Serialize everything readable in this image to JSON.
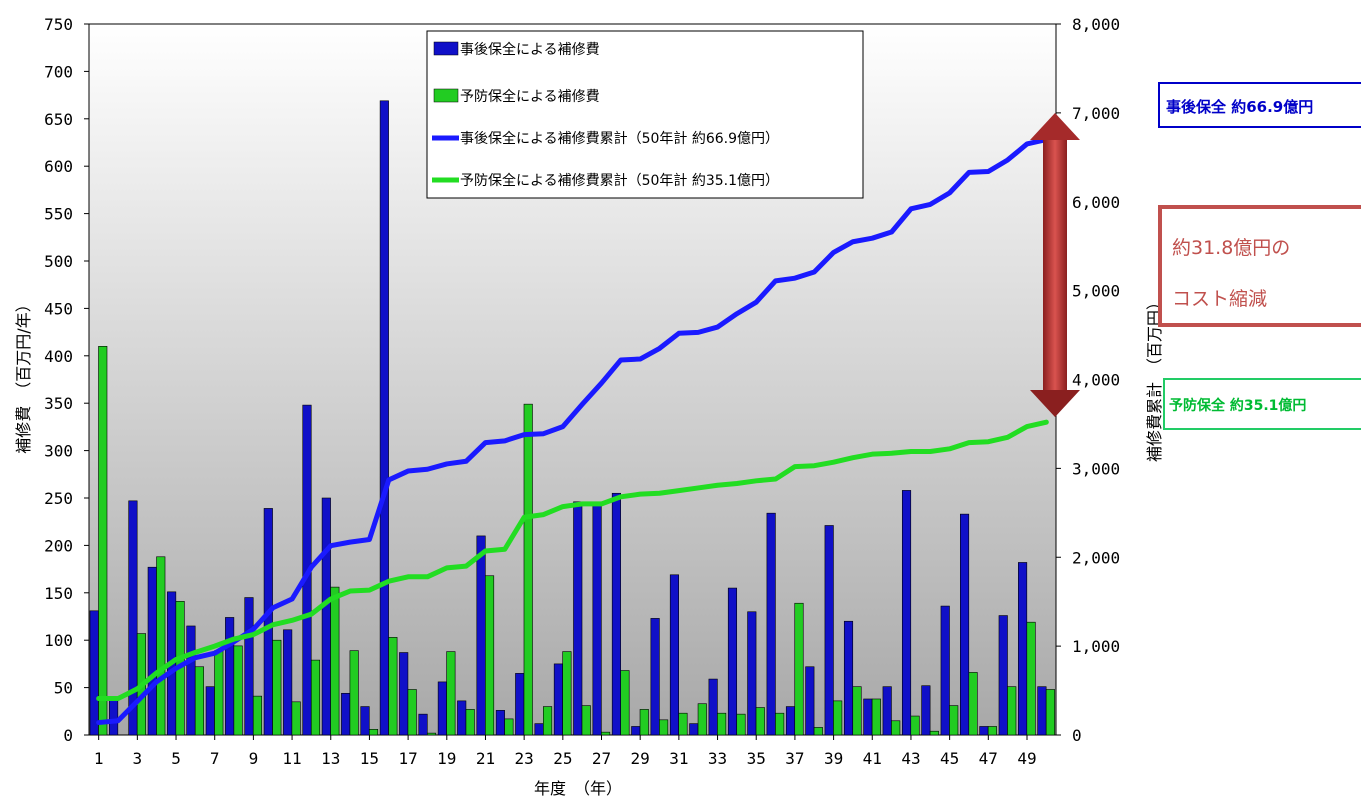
{
  "chart_data": {
    "type": "bar",
    "xlabel": "年度　（年）",
    "ylabel": "補修費　（百万円/年）",
    "y2label": "補修費累計　（百万円）",
    "ylim": [
      0,
      750
    ],
    "y2lim": [
      0,
      8000
    ],
    "y_ticks": [
      "0",
      "50",
      "100",
      "150",
      "200",
      "250",
      "300",
      "350",
      "400",
      "450",
      "500",
      "550",
      "600",
      "650",
      "700",
      "750"
    ],
    "y2_ticks": [
      "0",
      "1,000",
      "2,000",
      "3,000",
      "4,000",
      "5,000",
      "6,000",
      "7,000",
      "8,000"
    ],
    "x_ticks": [
      "1",
      "3",
      "5",
      "7",
      "9",
      "11",
      "13",
      "15",
      "17",
      "19",
      "21",
      "23",
      "25",
      "27",
      "29",
      "31",
      "33",
      "35",
      "37",
      "39",
      "41",
      "43",
      "45",
      "47",
      "49"
    ],
    "categories": [
      1,
      2,
      3,
      4,
      5,
      6,
      7,
      8,
      9,
      10,
      11,
      12,
      13,
      14,
      15,
      16,
      17,
      18,
      19,
      20,
      21,
      22,
      23,
      24,
      25,
      26,
      27,
      28,
      29,
      30,
      31,
      32,
      33,
      34,
      35,
      36,
      37,
      38,
      39,
      40,
      41,
      42,
      43,
      44,
      45,
      46,
      47,
      48,
      49,
      50
    ],
    "series": [
      {
        "name": "事後保全による補修費",
        "kind": "bar",
        "axis": "left",
        "color": "#1010c8",
        "values": [
          131,
          38,
          247,
          177,
          151,
          115,
          51,
          124,
          145,
          239,
          111,
          348,
          250,
          44,
          30,
          669,
          87,
          22,
          56,
          36,
          210,
          26,
          65,
          12,
          75,
          246,
          243,
          255,
          9,
          123,
          169,
          12,
          59,
          155,
          130,
          234,
          30,
          72,
          221,
          120,
          38,
          51,
          258,
          52,
          136,
          233,
          9,
          126,
          182,
          51
        ]
      },
      {
        "name": "予防保全による補修費",
        "kind": "bar",
        "axis": "left",
        "color": "#22cc22",
        "values": [
          410,
          0,
          107,
          188,
          141,
          72,
          89,
          94,
          41,
          100,
          35,
          79,
          156,
          89,
          6,
          103,
          48,
          2,
          88,
          27,
          168,
          17,
          349,
          30,
          88,
          31,
          3,
          68,
          27,
          16,
          23,
          33,
          23,
          22,
          29,
          23,
          139,
          8,
          36,
          51,
          38,
          15,
          20,
          4,
          31,
          66,
          9,
          51,
          119,
          48
        ]
      },
      {
        "name": "事後保全による補修費累計（50年計 約66.9億円）",
        "kind": "line",
        "axis": "right",
        "color": "#1a1aff",
        "values": [
          140,
          160,
          380,
          600,
          750,
          870,
          920,
          1050,
          1190,
          1430,
          1530,
          1890,
          2130,
          2170,
          2200,
          2870,
          2970,
          2990,
          3050,
          3080,
          3290,
          3310,
          3380,
          3390,
          3470,
          3720,
          3960,
          4220,
          4230,
          4350,
          4520,
          4530,
          4590,
          4740,
          4870,
          5110,
          5140,
          5210,
          5430,
          5550,
          5590,
          5660,
          5920,
          5970,
          6100,
          6330,
          6340,
          6470,
          6650,
          6700
        ]
      },
      {
        "name": "予防保全による補修費累計（50年計 約35.1億円）",
        "kind": "line",
        "axis": "right",
        "color": "#22dd22",
        "values": [
          410,
          410,
          520,
          700,
          850,
          930,
          1000,
          1080,
          1130,
          1240,
          1290,
          1360,
          1530,
          1620,
          1630,
          1730,
          1780,
          1780,
          1880,
          1900,
          2070,
          2090,
          2450,
          2480,
          2570,
          2600,
          2600,
          2680,
          2710,
          2720,
          2750,
          2780,
          2810,
          2830,
          2860,
          2880,
          3020,
          3030,
          3070,
          3120,
          3160,
          3170,
          3190,
          3190,
          3220,
          3290,
          3300,
          3350,
          3470,
          3520
        ]
      }
    ]
  },
  "annotations": {
    "after_total": "事後保全 約66.9億円",
    "prev_total": "予防保全 約35.1億円",
    "saving_line1": "約31.8億円の",
    "saving_line2": "コスト縮減"
  },
  "colors": {
    "after_bar": "#1010c8",
    "prev_bar": "#22cc22",
    "after_line": "#1a1aff",
    "prev_line": "#22dd22",
    "arrow": "#c0504d"
  }
}
